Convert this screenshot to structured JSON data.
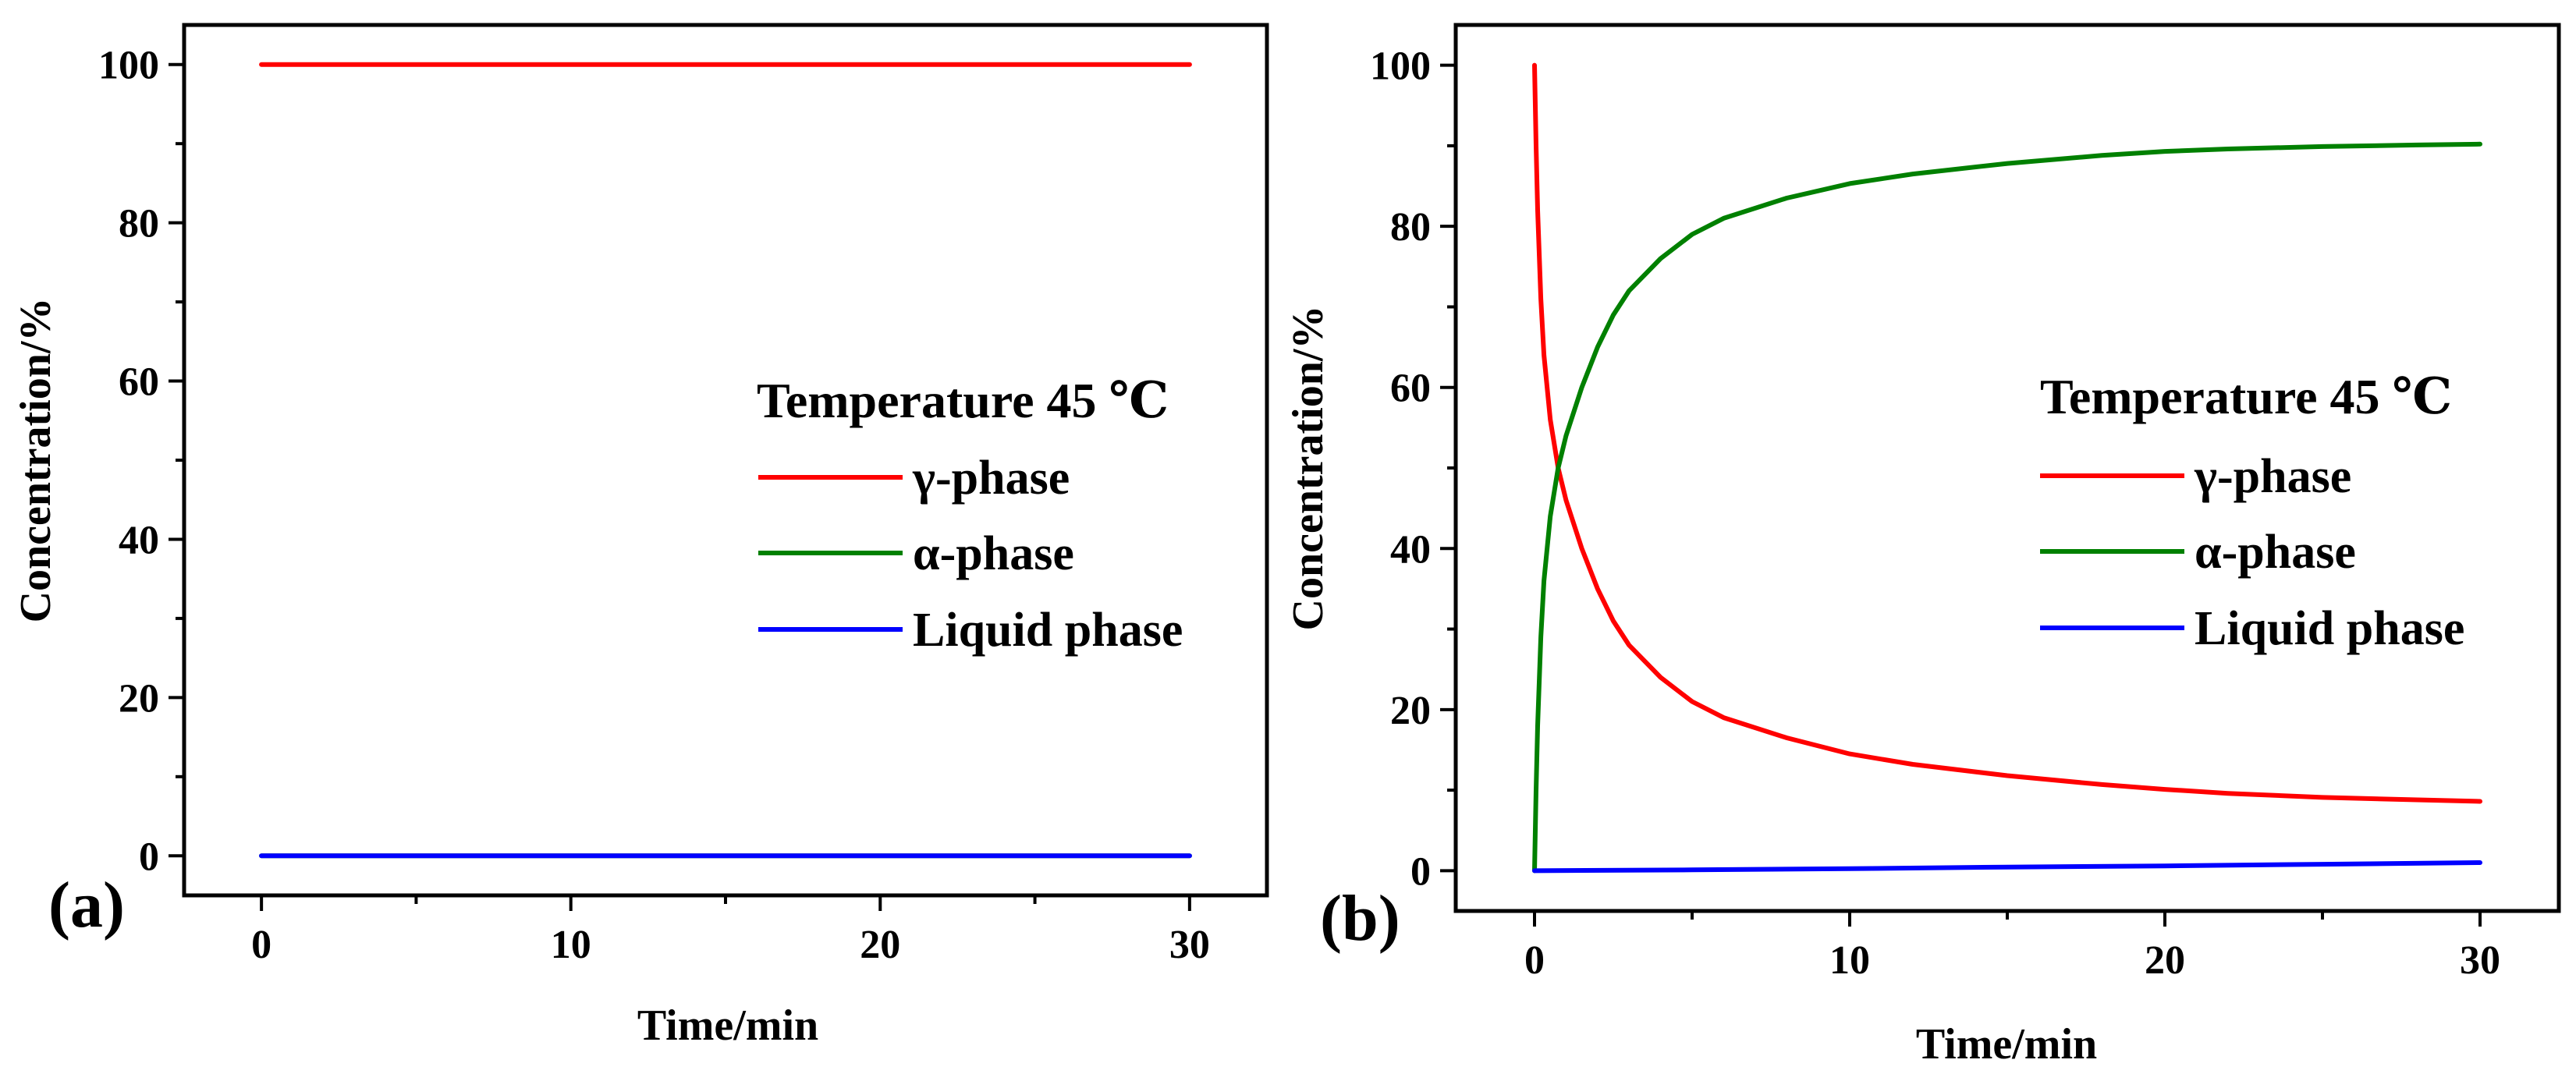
{
  "chart_data": [
    {
      "type": "line",
      "panel_label": "(a)",
      "xlabel": "Time/min",
      "ylabel": "Concentration/%",
      "xlim": [
        -2.5,
        32.5
      ],
      "ylim": [
        -5,
        105
      ],
      "xticks": [
        0,
        10,
        20,
        30
      ],
      "xtick_labels": [
        "0",
        "10",
        "20",
        "30"
      ],
      "yticks": [
        0,
        20,
        40,
        60,
        80,
        100
      ],
      "ytick_labels": [
        "0",
        "20",
        "40",
        "60",
        "80",
        "100"
      ],
      "grid": false,
      "legend_title": "Temperature 45 ℃",
      "legend_position": "center-right",
      "series": [
        {
          "name": "γ-phase",
          "color": "#ff0000",
          "x": [
            0,
            30
          ],
          "y": [
            100,
            100
          ]
        },
        {
          "name": "α-phase",
          "color": "#008000",
          "x": [
            0,
            30
          ],
          "y": [
            0,
            0
          ]
        },
        {
          "name": "Liquid phase",
          "color": "#0000ff",
          "x": [
            0,
            30
          ],
          "y": [
            0,
            0
          ]
        }
      ]
    },
    {
      "type": "line",
      "panel_label": "(b)",
      "xlabel": "Time/min",
      "ylabel": "Concentration/%",
      "xlim": [
        -2.5,
        32.5
      ],
      "ylim": [
        -5,
        105
      ],
      "xticks": [
        0,
        10,
        20,
        30
      ],
      "xtick_labels": [
        "0",
        "10",
        "20",
        "30"
      ],
      "yticks": [
        0,
        20,
        40,
        60,
        80,
        100
      ],
      "ytick_labels": [
        "0",
        "20",
        "40",
        "60",
        "80",
        "100"
      ],
      "grid": false,
      "legend_title": "Temperature 45 ℃",
      "legend_position": "center-right",
      "series": [
        {
          "name": "γ-phase",
          "color": "#ff0000",
          "x": [
            0,
            0.05,
            0.1,
            0.2,
            0.3,
            0.5,
            0.75,
            1,
            1.5,
            2,
            2.5,
            3,
            4,
            5,
            6,
            8,
            10,
            12,
            15,
            18,
            20,
            22,
            25,
            28,
            30
          ],
          "y": [
            100,
            90,
            82,
            71,
            64,
            56,
            50,
            46,
            40,
            35,
            31,
            28,
            24,
            21,
            19,
            16.5,
            14.5,
            13.2,
            11.8,
            10.7,
            10.1,
            9.6,
            9.1,
            8.8,
            8.6
          ]
        },
        {
          "name": "α-phase",
          "color": "#008000",
          "x": [
            0,
            0.05,
            0.1,
            0.2,
            0.3,
            0.5,
            0.75,
            1,
            1.5,
            2,
            2.5,
            3,
            4,
            5,
            6,
            8,
            10,
            12,
            15,
            18,
            20,
            22,
            25,
            28,
            30
          ],
          "y": [
            0,
            10,
            18,
            29,
            36,
            44,
            50,
            54,
            60,
            65,
            69,
            72,
            76,
            79,
            81,
            83.5,
            85.3,
            86.5,
            87.8,
            88.8,
            89.3,
            89.6,
            89.9,
            90.1,
            90.2
          ]
        },
        {
          "name": "Liquid phase",
          "color": "#0000ff",
          "x": [
            0,
            5,
            10,
            15,
            20,
            25,
            30
          ],
          "y": [
            0,
            0.1,
            0.25,
            0.45,
            0.6,
            0.8,
            1.0
          ]
        }
      ]
    }
  ]
}
